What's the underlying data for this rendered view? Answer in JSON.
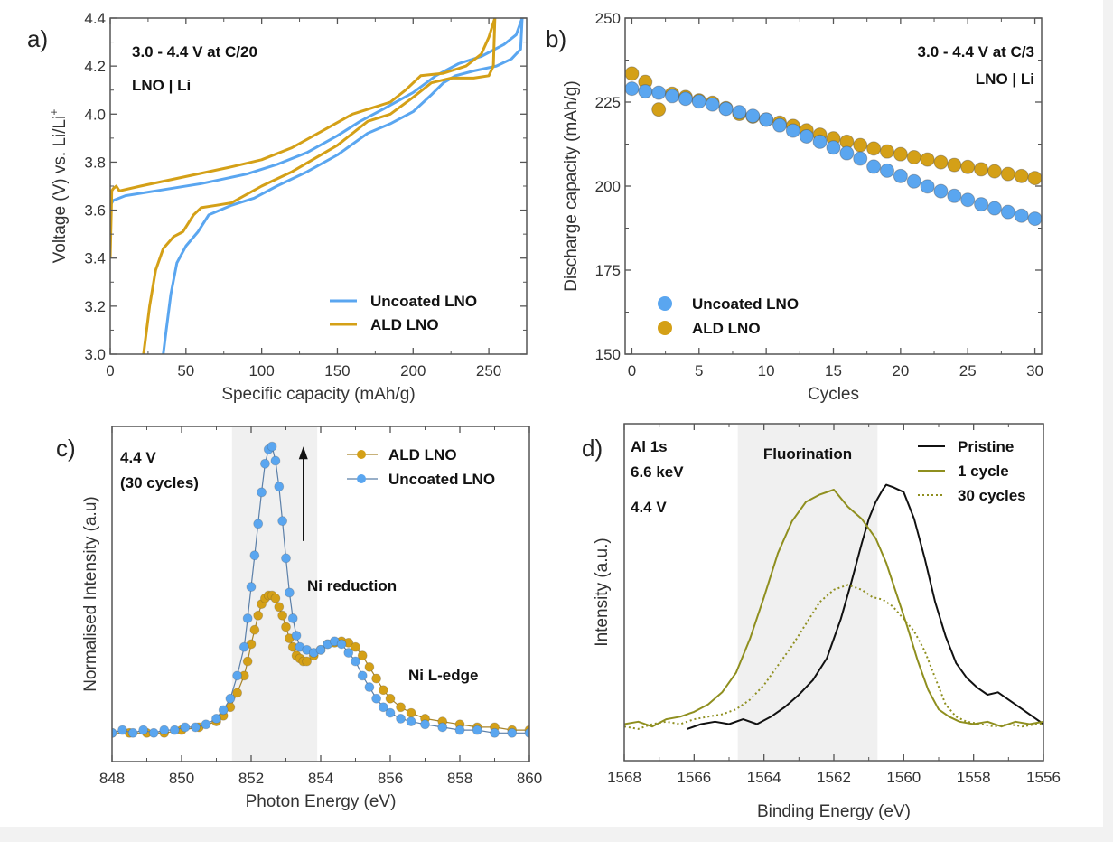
{
  "colors": {
    "uncoated": "#5aa6f0",
    "ald": "#d4a017",
    "pristine": "#111111",
    "one_cycle": "#8f8f1f",
    "thirty_cycles": "#8f8f1f",
    "shade": "#f0f0f0",
    "axis": "#555555"
  },
  "chart_data": [
    {
      "id": "a",
      "panel_label": "a)",
      "type": "line",
      "title": "",
      "xlabel": "Specific capacity (mAh/g)",
      "ylabel": "Voltage (V) vs. Li/Li+",
      "xlim": [
        0,
        275
      ],
      "ylim": [
        3.0,
        4.4
      ],
      "xticks": [
        0,
        50,
        100,
        150,
        200,
        250
      ],
      "yticks": [
        3.0,
        3.2,
        3.4,
        3.6,
        3.8,
        4.0,
        4.2,
        4.4
      ],
      "ytick_labels": [
        "3.0",
        "3.2",
        "3.4",
        "3.6",
        "3.8",
        "4.0",
        "4.2",
        "4.4"
      ],
      "annotations": [
        "3.0 - 4.4 V at C/20",
        "LNO | Li"
      ],
      "legend": {
        "placement": "bottom-right",
        "entries": [
          "Uncoated LNO",
          "ALD LNO"
        ]
      },
      "series": [
        {
          "name": "Uncoated LNO",
          "segment": "charge",
          "color_key": "uncoated",
          "x": [
            0,
            2,
            10,
            30,
            60,
            90,
            110,
            130,
            150,
            165,
            180,
            200,
            215,
            230,
            245,
            260,
            268,
            272
          ],
          "y": [
            3.62,
            3.64,
            3.66,
            3.68,
            3.71,
            3.75,
            3.79,
            3.84,
            3.91,
            3.97,
            4.02,
            4.09,
            4.16,
            4.21,
            4.24,
            4.29,
            4.33,
            4.4
          ]
        },
        {
          "name": "Uncoated LNO",
          "segment": "discharge",
          "color_key": "uncoated",
          "x": [
            272,
            271,
            265,
            255,
            240,
            228,
            220,
            212,
            200,
            185,
            170,
            150,
            130,
            110,
            95,
            80,
            65,
            58,
            50,
            44,
            40,
            37,
            35
          ],
          "y": [
            4.4,
            4.27,
            4.23,
            4.2,
            4.18,
            4.16,
            4.13,
            4.08,
            4.01,
            3.96,
            3.92,
            3.83,
            3.76,
            3.7,
            3.65,
            3.62,
            3.58,
            3.51,
            3.45,
            3.38,
            3.25,
            3.1,
            3.0
          ]
        },
        {
          "name": "ALD LNO",
          "segment": "charge",
          "color_key": "ald",
          "x": [
            0,
            1,
            2,
            4,
            6,
            20,
            50,
            80,
            100,
            120,
            140,
            160,
            175,
            185,
            195,
            205,
            220,
            235,
            245,
            250,
            253,
            254
          ],
          "y": [
            3.4,
            3.68,
            3.69,
            3.7,
            3.68,
            3.7,
            3.74,
            3.78,
            3.81,
            3.86,
            3.93,
            4.0,
            4.03,
            4.05,
            4.1,
            4.16,
            4.17,
            4.2,
            4.25,
            4.32,
            4.38,
            4.4
          ]
        },
        {
          "name": "ALD LNO",
          "segment": "discharge",
          "color_key": "ald",
          "x": [
            254,
            253,
            250,
            240,
            225,
            212,
            200,
            185,
            170,
            150,
            120,
            100,
            80,
            70,
            60,
            55,
            48,
            42,
            35,
            30,
            26,
            23,
            22
          ],
          "y": [
            4.4,
            4.2,
            4.16,
            4.15,
            4.15,
            4.13,
            4.07,
            4.0,
            3.97,
            3.87,
            3.76,
            3.7,
            3.63,
            3.62,
            3.61,
            3.58,
            3.51,
            3.49,
            3.44,
            3.35,
            3.2,
            3.05,
            3.0
          ]
        }
      ]
    },
    {
      "id": "b",
      "panel_label": "b)",
      "type": "scatter",
      "title": "",
      "xlabel": "Cycles",
      "ylabel": "Discharge capacity (mAh/g)",
      "xlim": [
        -0.5,
        30.5
      ],
      "ylim": [
        150,
        250
      ],
      "xticks": [
        0,
        5,
        10,
        15,
        20,
        25,
        30
      ],
      "yticks": [
        150,
        175,
        200,
        225,
        250
      ],
      "annotations": [
        "3.0 - 4.4 V at C/3",
        "LNO | Li"
      ],
      "legend": {
        "placement": "bottom-left",
        "entries": [
          "Uncoated LNO",
          "ALD LNO"
        ]
      },
      "series": [
        {
          "name": "ALD LNO",
          "color_key": "ald",
          "x": [
            0,
            1,
            2,
            3,
            4,
            5,
            6,
            7,
            8,
            9,
            10,
            11,
            12,
            13,
            14,
            15,
            16,
            17,
            18,
            19,
            20,
            21,
            22,
            23,
            24,
            25,
            26,
            27,
            28,
            29,
            30
          ],
          "y": [
            233.5,
            231,
            222.8,
            227.5,
            226.5,
            225.5,
            224.8,
            223.2,
            221.5,
            220.7,
            219.8,
            218.9,
            217.9,
            216.6,
            215.3,
            214.2,
            213.2,
            212.2,
            211.2,
            210.3,
            209.5,
            208.6,
            207.9,
            207.1,
            206.3,
            205.7,
            205.0,
            204.4,
            203.6,
            203.0,
            202.4
          ]
        },
        {
          "name": "Uncoated LNO",
          "color_key": "uncoated",
          "x": [
            0,
            1,
            2,
            3,
            4,
            5,
            6,
            7,
            8,
            9,
            10,
            11,
            12,
            13,
            14,
            15,
            16,
            17,
            18,
            19,
            20,
            21,
            22,
            23,
            24,
            25,
            26,
            27,
            28,
            29,
            30
          ],
          "y": [
            229,
            228.2,
            227.8,
            226.8,
            226,
            225.2,
            224.3,
            223,
            222,
            220.9,
            219.8,
            218.1,
            216.5,
            214.8,
            213.2,
            211.5,
            209.8,
            208.2,
            205.8,
            204.6,
            203.0,
            201.4,
            199.9,
            198.5,
            197.1,
            195.9,
            194.6,
            193.4,
            192.3,
            191.2,
            190.3
          ]
        }
      ]
    },
    {
      "id": "c",
      "panel_label": "c)",
      "type": "line",
      "title": "",
      "xlabel": "Photon Energy (eV)",
      "ylabel": "Normalised Intensity (a.u)",
      "xlim": [
        848,
        860
      ],
      "ylim": [
        -0.1,
        1.07
      ],
      "xticks": [
        848,
        850,
        852,
        854,
        856,
        858,
        860
      ],
      "yticks": [],
      "shaded_region": [
        851.45,
        853.9
      ],
      "annotations": [
        "4.4 V",
        "(30 cycles)",
        "Ni reduction",
        "Ni L-edge"
      ],
      "arrow": {
        "x": 853.5,
        "from": 0.67,
        "to": 1.0
      },
      "legend": {
        "placement": "top-right",
        "entries": [
          "ALD LNO",
          "Uncoated LNO"
        ]
      },
      "series": [
        {
          "name": "ALD LNO",
          "color_key": "ald",
          "marker": "circle",
          "x": [
            848.0,
            848.5,
            849.0,
            849.5,
            850.0,
            850.5,
            851.0,
            851.2,
            851.4,
            851.6,
            851.8,
            851.9,
            852.0,
            852.1,
            852.2,
            852.3,
            852.4,
            852.5,
            852.6,
            852.7,
            852.8,
            852.9,
            853.0,
            853.1,
            853.2,
            853.3,
            853.4,
            853.5,
            853.6,
            853.8,
            854.0,
            854.2,
            854.4,
            854.6,
            854.8,
            855.0,
            855.2,
            855.4,
            855.6,
            855.8,
            856.0,
            856.3,
            856.6,
            857.0,
            857.5,
            858.0,
            858.5,
            859.0,
            859.5,
            860.0
          ],
          "y": [
            0.0,
            0.0,
            0.0,
            0.0,
            0.01,
            0.02,
            0.04,
            0.06,
            0.09,
            0.14,
            0.2,
            0.25,
            0.31,
            0.36,
            0.41,
            0.45,
            0.47,
            0.48,
            0.48,
            0.47,
            0.44,
            0.41,
            0.37,
            0.33,
            0.3,
            0.27,
            0.26,
            0.25,
            0.25,
            0.27,
            0.29,
            0.31,
            0.315,
            0.32,
            0.315,
            0.3,
            0.27,
            0.23,
            0.19,
            0.15,
            0.12,
            0.09,
            0.07,
            0.05,
            0.04,
            0.03,
            0.02,
            0.02,
            0.01,
            0.01
          ]
        },
        {
          "name": "Uncoated LNO",
          "color_key": "uncoated",
          "marker": "circle",
          "x": [
            848.0,
            848.3,
            848.6,
            848.9,
            849.2,
            849.5,
            849.8,
            850.1,
            850.4,
            850.7,
            851.0,
            851.2,
            851.4,
            851.6,
            851.8,
            851.9,
            852.0,
            852.1,
            852.2,
            852.3,
            852.4,
            852.5,
            852.6,
            852.7,
            852.8,
            852.9,
            853.0,
            853.1,
            853.2,
            853.3,
            853.4,
            853.6,
            853.8,
            854.0,
            854.2,
            854.4,
            854.6,
            854.8,
            855.0,
            855.2,
            855.4,
            855.6,
            855.8,
            856.0,
            856.3,
            856.6,
            857.0,
            857.5,
            858.0,
            858.5,
            859.0,
            859.5,
            860.0
          ],
          "y": [
            0.0,
            0.01,
            0.0,
            0.01,
            0.0,
            0.01,
            0.01,
            0.02,
            0.02,
            0.03,
            0.05,
            0.08,
            0.12,
            0.2,
            0.3,
            0.4,
            0.51,
            0.62,
            0.73,
            0.84,
            0.94,
            0.99,
            1.0,
            0.95,
            0.86,
            0.74,
            0.61,
            0.49,
            0.4,
            0.34,
            0.3,
            0.29,
            0.28,
            0.29,
            0.31,
            0.32,
            0.31,
            0.28,
            0.25,
            0.2,
            0.16,
            0.12,
            0.09,
            0.07,
            0.05,
            0.04,
            0.03,
            0.02,
            0.01,
            0.01,
            0.0,
            0.0,
            0.0
          ]
        }
      ]
    },
    {
      "id": "d",
      "panel_label": "d)",
      "type": "line",
      "title": "",
      "xlabel": "Binding Energy (eV)",
      "ylabel": "Intensity (a.u.)",
      "xlim": [
        1568,
        1556
      ],
      "x_reversed": true,
      "ylim": [
        -0.13,
        1.25
      ],
      "xticks": [
        1568,
        1566,
        1564,
        1562,
        1560,
        1558,
        1556
      ],
      "yticks": [],
      "shaded_region": [
        1564.75,
        1560.75
      ],
      "shaded_label": "Fluorination",
      "annotations": [
        "Al 1s",
        "6.6 keV",
        "4.4 V"
      ],
      "legend": {
        "placement": "top-right",
        "entries": [
          "Pristine",
          "1 cycle",
          "30 cycles"
        ]
      },
      "series": [
        {
          "name": "Pristine",
          "color_key": "pristine",
          "style": "solid",
          "x": [
            1566.2,
            1565.8,
            1565.4,
            1565.0,
            1564.6,
            1564.2,
            1563.8,
            1563.4,
            1563.0,
            1562.6,
            1562.2,
            1561.8,
            1561.5,
            1561.2,
            1561.0,
            1560.8,
            1560.6,
            1560.5,
            1560.3,
            1560.0,
            1559.7,
            1559.4,
            1559.1,
            1558.8,
            1558.5,
            1558.2,
            1557.9,
            1557.6,
            1557.3,
            1557.0,
            1556.6,
            1556.2,
            1556.0
          ],
          "y": [
            0.0,
            0.02,
            0.03,
            0.02,
            0.04,
            0.02,
            0.05,
            0.09,
            0.14,
            0.2,
            0.29,
            0.45,
            0.6,
            0.76,
            0.86,
            0.93,
            0.98,
            1.0,
            0.99,
            0.97,
            0.86,
            0.7,
            0.52,
            0.38,
            0.27,
            0.21,
            0.17,
            0.14,
            0.15,
            0.12,
            0.08,
            0.04,
            0.02
          ]
        },
        {
          "name": "1 cycle",
          "color_key": "one_cycle",
          "style": "solid",
          "x": [
            1568.0,
            1567.6,
            1567.2,
            1566.8,
            1566.4,
            1566.0,
            1565.6,
            1565.2,
            1564.8,
            1564.4,
            1564.0,
            1563.6,
            1563.2,
            1562.8,
            1562.4,
            1562.0,
            1561.6,
            1561.2,
            1561.0,
            1560.8,
            1560.5,
            1560.2,
            1559.9,
            1559.6,
            1559.3,
            1559.0,
            1558.7,
            1558.4,
            1558.0,
            1557.6,
            1557.2,
            1556.8,
            1556.4,
            1556.0
          ],
          "y": [
            0.02,
            0.03,
            0.01,
            0.04,
            0.05,
            0.07,
            0.1,
            0.15,
            0.23,
            0.37,
            0.54,
            0.72,
            0.85,
            0.93,
            0.96,
            0.98,
            0.91,
            0.86,
            0.82,
            0.78,
            0.68,
            0.55,
            0.42,
            0.28,
            0.16,
            0.08,
            0.05,
            0.03,
            0.02,
            0.03,
            0.01,
            0.03,
            0.02,
            0.03
          ]
        },
        {
          "name": "30 cycles",
          "color_key": "thirty_cycles",
          "style": "dotted",
          "x": [
            1568.0,
            1567.6,
            1567.2,
            1566.8,
            1566.4,
            1566.0,
            1565.6,
            1565.2,
            1564.8,
            1564.4,
            1564.0,
            1563.6,
            1563.2,
            1562.8,
            1562.4,
            1562.0,
            1561.6,
            1561.2,
            1560.9,
            1560.6,
            1560.3,
            1560.0,
            1559.7,
            1559.4,
            1559.1,
            1558.8,
            1558.5,
            1558.2,
            1557.8,
            1557.4,
            1557.0,
            1556.6,
            1556.2,
            1556.0
          ],
          "y": [
            0.01,
            0.0,
            0.02,
            0.03,
            0.02,
            0.04,
            0.05,
            0.06,
            0.08,
            0.12,
            0.18,
            0.26,
            0.34,
            0.43,
            0.52,
            0.57,
            0.59,
            0.57,
            0.54,
            0.53,
            0.5,
            0.45,
            0.4,
            0.32,
            0.21,
            0.1,
            0.05,
            0.03,
            0.02,
            0.01,
            0.02,
            0.01,
            0.02,
            0.02
          ]
        }
      ]
    }
  ]
}
